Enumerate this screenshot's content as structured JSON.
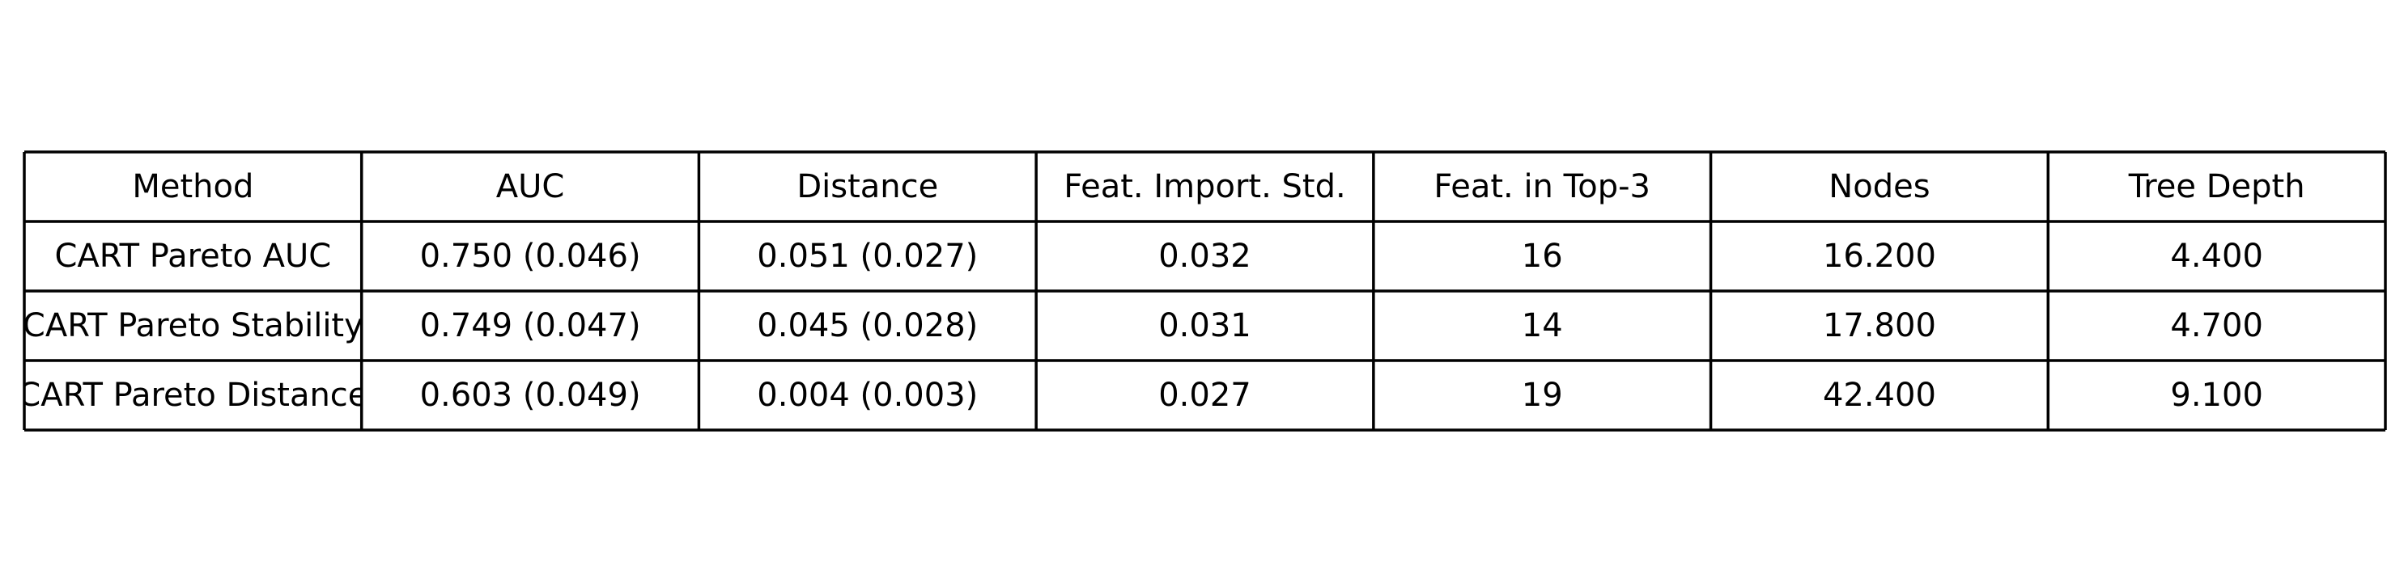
{
  "chart_data": {
    "type": "table",
    "columns": [
      "Method",
      "AUC",
      "Distance",
      "Feat. Import. Std.",
      "Feat. in Top-3",
      "Nodes",
      "Tree Depth"
    ],
    "rows": [
      [
        "CART Pareto AUC",
        "0.750 (0.046)",
        "0.051 (0.027)",
        "0.032",
        "16",
        "16.200",
        "4.400"
      ],
      [
        "CART Pareto Stability",
        "0.749 (0.047)",
        "0.045 (0.028)",
        "0.031",
        "14",
        "17.800",
        "4.700"
      ],
      [
        "CART Pareto Distance",
        "0.603 (0.049)",
        "0.004 (0.003)",
        "0.027",
        "19",
        "42.400",
        "9.100"
      ]
    ],
    "grid": true
  }
}
